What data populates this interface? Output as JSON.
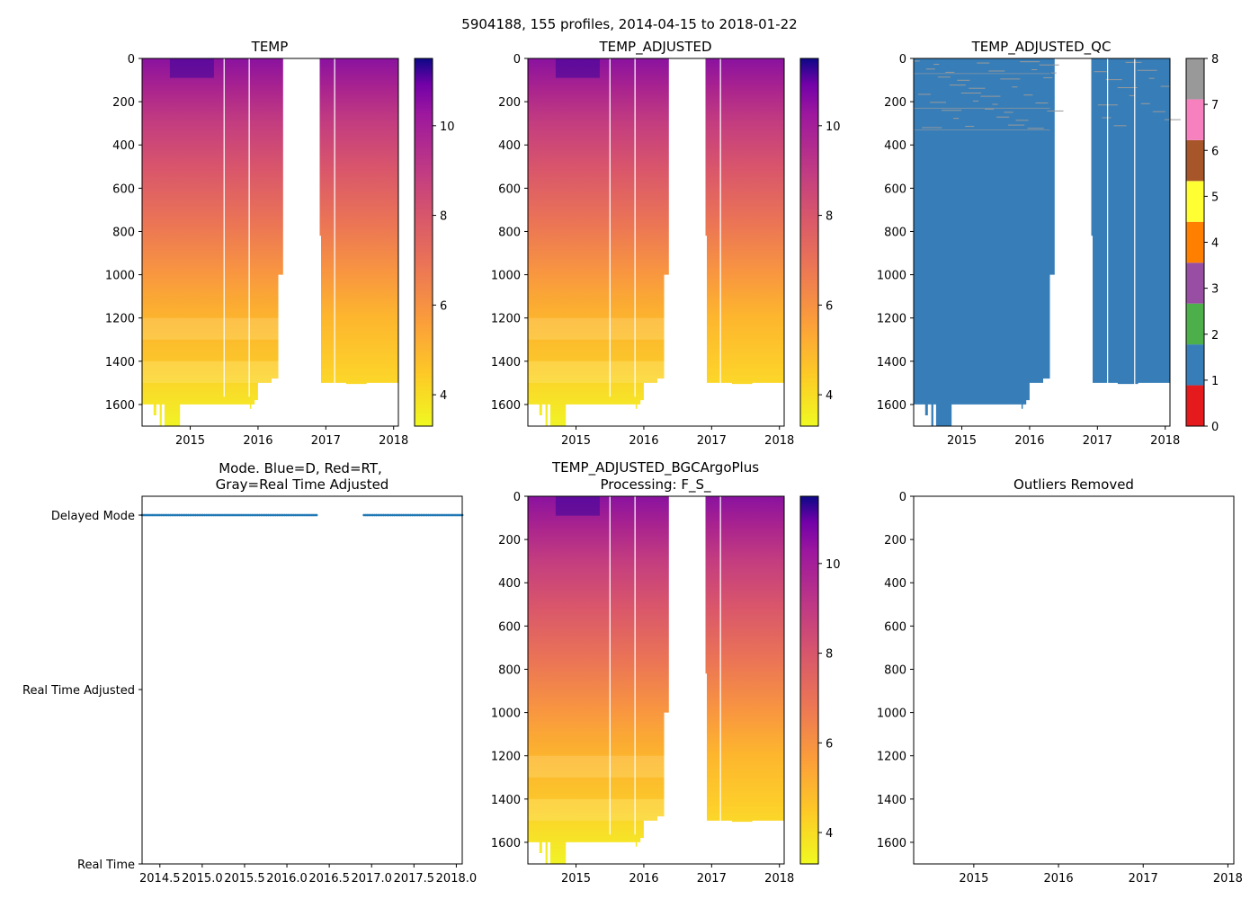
{
  "figure_title": "5904188, 155 profiles, 2014-04-15 to 2018-01-22",
  "colors": {
    "qc_palette": [
      "#e41a1c",
      "#377eb8",
      "#4daf4a",
      "#984ea3",
      "#ff7f00",
      "#ffff33",
      "#a65628",
      "#f781bf",
      "#999999"
    ]
  },
  "chart_data": [
    {
      "id": "temp",
      "type": "heatmap",
      "title": "TEMP",
      "colormap": "plasma_r",
      "xlim": [
        2014.29,
        2018.07
      ],
      "ylim": [
        1700,
        0
      ],
      "xticks": [
        2015,
        2016,
        2017,
        2018
      ],
      "xtick_labels": [
        "2015",
        "2016",
        "2017",
        "2018"
      ],
      "yticks": [
        0,
        200,
        400,
        600,
        800,
        1000,
        1200,
        1400,
        1600
      ],
      "yticks_labels": [
        "0",
        "200",
        "400",
        "600",
        "800",
        "1000",
        "1200",
        "1400",
        "1600"
      ],
      "colorbar": {
        "range": [
          3.3,
          11.5
        ],
        "ticks": [
          4,
          6,
          8,
          10
        ],
        "tick_labels": [
          "4",
          "6",
          "8",
          "10"
        ]
      },
      "data_gap": [
        2016.37,
        2016.92
      ]
    },
    {
      "id": "temp-adjusted",
      "type": "heatmap",
      "title": "TEMP_ADJUSTED",
      "colormap": "plasma_r",
      "xlim": [
        2014.29,
        2018.07
      ],
      "ylim": [
        1700,
        0
      ],
      "xticks": [
        2015,
        2016,
        2017,
        2018
      ],
      "xtick_labels": [
        "2015",
        "2016",
        "2017",
        "2018"
      ],
      "yticks": [
        0,
        200,
        400,
        600,
        800,
        1000,
        1200,
        1400,
        1600
      ],
      "yticks_labels": [
        "0",
        "200",
        "400",
        "600",
        "800",
        "1000",
        "1200",
        "1400",
        "1600"
      ],
      "colorbar": {
        "range": [
          3.3,
          11.5
        ],
        "ticks": [
          4,
          6,
          8,
          10
        ],
        "tick_labels": [
          "4",
          "6",
          "8",
          "10"
        ]
      },
      "data_gap": [
        2016.37,
        2016.92
      ]
    },
    {
      "id": "temp-adjusted-qc",
      "type": "heatmap",
      "title": "TEMP_ADJUSTED_QC",
      "colormap": "qc_categorical",
      "dominant_flag": 1,
      "minor_flag": 8,
      "xlim": [
        2014.29,
        2018.07
      ],
      "ylim": [
        1700,
        0
      ],
      "xticks": [
        2015,
        2016,
        2017,
        2018
      ],
      "xtick_labels": [
        "2015",
        "2016",
        "2017",
        "2018"
      ],
      "yticks": [
        0,
        200,
        400,
        600,
        800,
        1000,
        1200,
        1400,
        1600
      ],
      "yticks_labels": [
        "0",
        "200",
        "400",
        "600",
        "800",
        "1000",
        "1200",
        "1400",
        "1600"
      ],
      "colorbar": {
        "range": [
          0,
          8
        ],
        "ticks": [
          0,
          1,
          2,
          3,
          4,
          5,
          6,
          7,
          8
        ],
        "tick_labels": [
          "0",
          "1",
          "2",
          "3",
          "4",
          "5",
          "6",
          "7",
          "8"
        ]
      },
      "data_gap": [
        2016.37,
        2016.92
      ]
    },
    {
      "id": "mode",
      "type": "scatter",
      "title": "Mode. Blue=D, Red=RT,",
      "title_line2": "Gray=Real Time Adjusted",
      "xlim": [
        2014.29,
        2018.07
      ],
      "ylim": [
        0,
        2
      ],
      "xticks": [
        2014.5,
        2015.0,
        2015.5,
        2016.0,
        2016.5,
        2017.0,
        2017.5,
        2018.0
      ],
      "xtick_labels": [
        "2014.5",
        "2015.0",
        "2015.5",
        "2016.0",
        "2016.5",
        "2017.0",
        "2017.5",
        "2018.0"
      ],
      "yticks": [
        2,
        1,
        0
      ],
      "ytick_labels": [
        "Delayed Mode",
        "Real Time Adjusted",
        "Real Time"
      ],
      "series": [
        {
          "name": "Delayed Mode",
          "y": 2,
          "color": "#1f77b4",
          "x_ranges": [
            [
              2014.29,
              2016.35
            ],
            [
              2016.91,
              2018.07
            ]
          ],
          "count": 155
        }
      ]
    },
    {
      "id": "temp-adjusted-bgcargoplus",
      "type": "heatmap",
      "title": "TEMP_ADJUSTED_BGCArgoPlus",
      "title_line2": "Processing: F_S_",
      "colormap": "plasma_r",
      "xlim": [
        2014.29,
        2018.07
      ],
      "ylim": [
        1700,
        0
      ],
      "xticks": [
        2015,
        2016,
        2017,
        2018
      ],
      "xtick_labels": [
        "2015",
        "2016",
        "2017",
        "2018"
      ],
      "yticks": [
        0,
        200,
        400,
        600,
        800,
        1000,
        1200,
        1400,
        1600
      ],
      "yticks_labels": [
        "0",
        "200",
        "400",
        "600",
        "800",
        "1000",
        "1200",
        "1400",
        "1600"
      ],
      "colorbar": {
        "range": [
          3.3,
          11.5
        ],
        "ticks": [
          4,
          6,
          8,
          10
        ],
        "tick_labels": [
          "4",
          "6",
          "8",
          "10"
        ]
      },
      "data_gap": [
        2016.37,
        2016.92
      ]
    },
    {
      "id": "outliers-removed",
      "type": "scatter",
      "title": "Outliers Removed",
      "xlim": [
        2014.29,
        2018.07
      ],
      "ylim": [
        1700,
        0
      ],
      "xticks": [
        2015,
        2016,
        2017,
        2018
      ],
      "xtick_labels": [
        "2015",
        "2016",
        "2017",
        "2018"
      ],
      "yticks": [
        0,
        200,
        400,
        600,
        800,
        1000,
        1200,
        1400,
        1600
      ],
      "yticks_labels": [
        "0",
        "200",
        "400",
        "600",
        "800",
        "1000",
        "1200",
        "1400",
        "1600"
      ],
      "series": []
    }
  ]
}
